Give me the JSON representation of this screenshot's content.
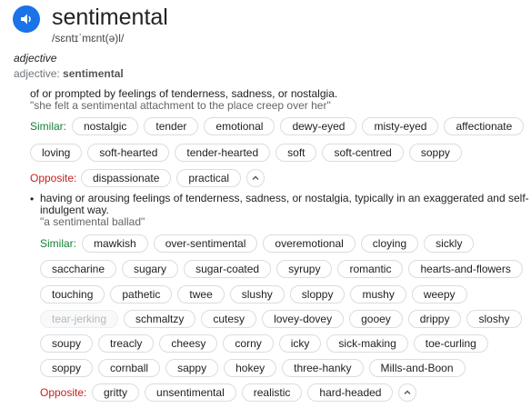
{
  "entry": {
    "word": "sentimental",
    "phonetic": "/sɛntɪˈmɛnt(ə)l/",
    "part_of_speech": "adjective",
    "pos_prefix": "adjective:",
    "pos_word": "sentimental",
    "icons": {
      "pronounce": "speaker-icon",
      "expand": "chevron-up-icon"
    },
    "colors": {
      "accent": "#1a73e8",
      "similar": "#188038",
      "opposite": "#c5221f"
    }
  },
  "senses": [
    {
      "definition": "of or prompted by feelings of tenderness, sadness, or nostalgia.",
      "example": "\"she felt a sentimental attachment to the place creep over her\"",
      "similar_label": "Similar:",
      "similar_rows": [
        [
          "nostalgic",
          "tender",
          "emotional",
          "dewy-eyed",
          "misty-eyed",
          "affectionate"
        ],
        [
          "loving",
          "soft-hearted",
          "tender-hearted",
          "soft",
          "soft-centred",
          "soppy"
        ]
      ],
      "opposite_label": "Opposite:",
      "opposites": [
        "dispassionate",
        "practical"
      ]
    },
    {
      "bullet": "•",
      "definition_line1": "having or arousing feelings of tenderness, sadness, or nostalgia, typically in an exaggerated and self-",
      "definition_line2": "indulgent way.",
      "example": "\"a sentimental ballad\"",
      "similar_label": "Similar:",
      "similar_rows": [
        [
          "mawkish",
          "over-sentimental",
          "overemotional",
          "cloying",
          "sickly"
        ],
        [
          "saccharine",
          "sugary",
          "sugar-coated",
          "syrupy",
          "romantic",
          "hearts-and-flowers"
        ],
        [
          "touching",
          "pathetic",
          "twee",
          "slushy",
          "sloppy",
          "mushy",
          "weepy"
        ],
        [
          "tear-jerking",
          "schmaltzy",
          "cutesy",
          "lovey-dovey",
          "gooey",
          "drippy",
          "sloshy"
        ],
        [
          "soupy",
          "treacly",
          "cheesy",
          "corny",
          "icky",
          "sick-making",
          "toe-curling"
        ],
        [
          "soppy",
          "cornball",
          "sappy",
          "hokey",
          "three-hanky",
          "Mills-and-Boon"
        ]
      ],
      "muted_chip": "tear-jerking",
      "opposite_label": "Opposite:",
      "opposites": [
        "gritty",
        "unsentimental",
        "realistic",
        "hard-headed"
      ]
    }
  ]
}
